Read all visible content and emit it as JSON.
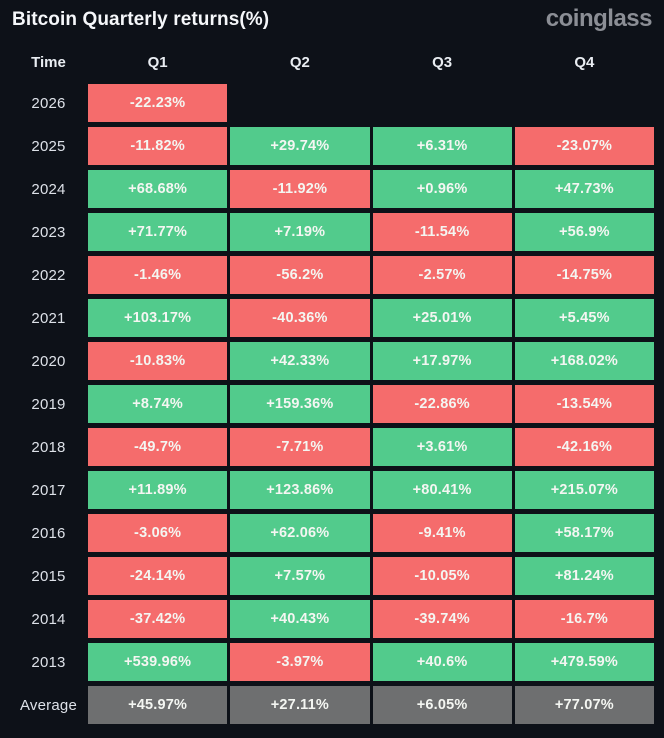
{
  "header": {
    "title": "Bitcoin Quarterly returns(%)",
    "logo": "coinglass"
  },
  "colors": {
    "background": "#0d1118",
    "positive": "#52cb8c",
    "negative": "#f56c6c",
    "average": "#6e6f70",
    "cell_text": "#f4f6f2",
    "label_text": "#dde1e8"
  },
  "table": {
    "columns": [
      "Time",
      "Q1",
      "Q2",
      "Q3",
      "Q4"
    ],
    "rows": [
      {
        "label": "2026",
        "type": "year",
        "values": [
          "-22.23%",
          null,
          null,
          null
        ]
      },
      {
        "label": "2025",
        "type": "year",
        "values": [
          "-11.82%",
          "+29.74%",
          "+6.31%",
          "-23.07%"
        ]
      },
      {
        "label": "2024",
        "type": "year",
        "values": [
          "+68.68%",
          "-11.92%",
          "+0.96%",
          "+47.73%"
        ]
      },
      {
        "label": "2023",
        "type": "year",
        "values": [
          "+71.77%",
          "+7.19%",
          "-11.54%",
          "+56.9%"
        ]
      },
      {
        "label": "2022",
        "type": "year",
        "values": [
          "-1.46%",
          "-56.2%",
          "-2.57%",
          "-14.75%"
        ]
      },
      {
        "label": "2021",
        "type": "year",
        "values": [
          "+103.17%",
          "-40.36%",
          "+25.01%",
          "+5.45%"
        ]
      },
      {
        "label": "2020",
        "type": "year",
        "values": [
          "-10.83%",
          "+42.33%",
          "+17.97%",
          "+168.02%"
        ]
      },
      {
        "label": "2019",
        "type": "year",
        "values": [
          "+8.74%",
          "+159.36%",
          "-22.86%",
          "-13.54%"
        ]
      },
      {
        "label": "2018",
        "type": "year",
        "values": [
          "-49.7%",
          "-7.71%",
          "+3.61%",
          "-42.16%"
        ]
      },
      {
        "label": "2017",
        "type": "year",
        "values": [
          "+11.89%",
          "+123.86%",
          "+80.41%",
          "+215.07%"
        ]
      },
      {
        "label": "2016",
        "type": "year",
        "values": [
          "-3.06%",
          "+62.06%",
          "-9.41%",
          "+58.17%"
        ]
      },
      {
        "label": "2015",
        "type": "year",
        "values": [
          "-24.14%",
          "+7.57%",
          "-10.05%",
          "+81.24%"
        ]
      },
      {
        "label": "2014",
        "type": "year",
        "values": [
          "-37.42%",
          "+40.43%",
          "-39.74%",
          "-16.7%"
        ]
      },
      {
        "label": "2013",
        "type": "year",
        "values": [
          "+539.96%",
          "-3.97%",
          "+40.6%",
          "+479.59%"
        ]
      },
      {
        "label": "Average",
        "type": "average",
        "values": [
          "+45.97%",
          "+27.11%",
          "+6.05%",
          "+77.07%"
        ]
      }
    ]
  },
  "chart_data": {
    "type": "heatmap",
    "title": "Bitcoin Quarterly returns(%)",
    "columns": [
      "Q1",
      "Q2",
      "Q3",
      "Q4"
    ],
    "rows": [
      "2026",
      "2025",
      "2024",
      "2023",
      "2022",
      "2021",
      "2020",
      "2019",
      "2018",
      "2017",
      "2016",
      "2015",
      "2014",
      "2013",
      "Average"
    ],
    "values_percent": [
      [
        -22.23,
        null,
        null,
        null
      ],
      [
        -11.82,
        29.74,
        6.31,
        -23.07
      ],
      [
        68.68,
        -11.92,
        0.96,
        47.73
      ],
      [
        71.77,
        7.19,
        -11.54,
        56.9
      ],
      [
        -1.46,
        -56.2,
        -2.57,
        -14.75
      ],
      [
        103.17,
        -40.36,
        25.01,
        5.45
      ],
      [
        -10.83,
        42.33,
        17.97,
        168.02
      ],
      [
        8.74,
        159.36,
        -22.86,
        -13.54
      ],
      [
        -49.7,
        -7.71,
        3.61,
        -42.16
      ],
      [
        11.89,
        123.86,
        80.41,
        215.07
      ],
      [
        -3.06,
        62.06,
        -9.41,
        58.17
      ],
      [
        -24.14,
        7.57,
        -10.05,
        81.24
      ],
      [
        -37.42,
        40.43,
        -39.74,
        -16.7
      ],
      [
        539.96,
        -3.97,
        40.6,
        479.59
      ],
      [
        45.97,
        27.11,
        6.05,
        77.07
      ]
    ],
    "color_rule": "positive=green, negative=red, Average row=gray",
    "legend": "none",
    "grid": "off"
  }
}
